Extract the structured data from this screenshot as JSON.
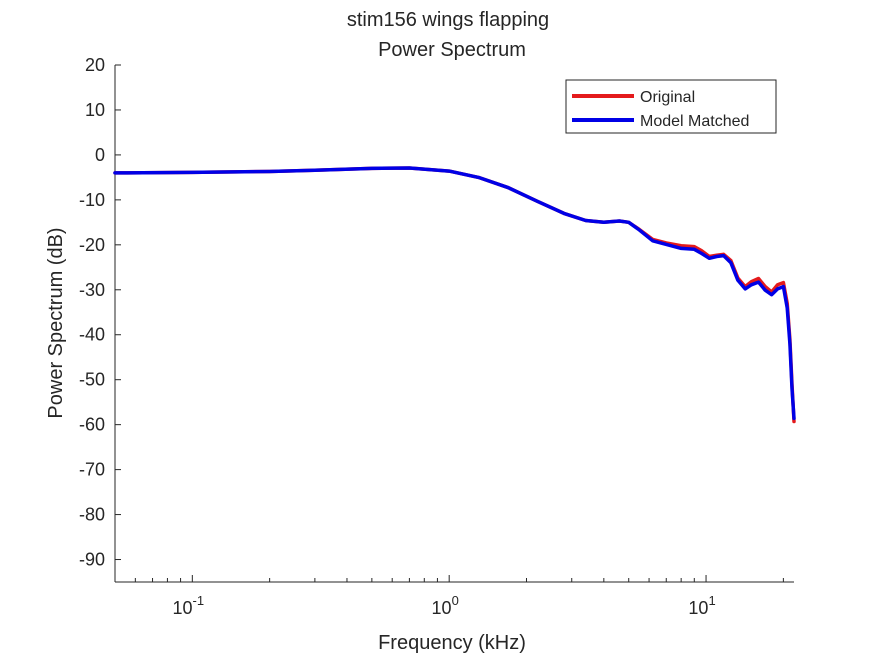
{
  "chart_data": {
    "type": "line",
    "title": [
      "stim156 wings flapping",
      "Power Spectrum"
    ],
    "xlabel": "Frequency (kHz)",
    "ylabel": "Power Spectrum (dB)",
    "xscale": "log",
    "xlim": [
      0.05,
      22
    ],
    "ylim": [
      -95,
      20
    ],
    "grid": false,
    "legend": {
      "placement": "top-right"
    },
    "x_ticks": [
      {
        "value": 0.1,
        "base": "10",
        "exp": "-1"
      },
      {
        "value": 1,
        "base": "10",
        "exp": "0"
      },
      {
        "value": 10,
        "base": "10",
        "exp": "1"
      }
    ],
    "y_ticks": [
      20,
      10,
      0,
      -10,
      -20,
      -30,
      -40,
      -50,
      -60,
      -70,
      -80,
      -90
    ],
    "series": [
      {
        "name": "Original",
        "color": "#e41a1c",
        "x": [
          0.05,
          0.1,
          0.2,
          0.3,
          0.5,
          0.7,
          1.0,
          1.3,
          1.7,
          2.2,
          2.8,
          3.4,
          4.0,
          4.6,
          5.0,
          5.5,
          6.2,
          7.0,
          8.0,
          9.0,
          9.6,
          10.3,
          11.0,
          11.7,
          12.5,
          13.3,
          14.2,
          15.0,
          16.0,
          17.0,
          18.0,
          19.0,
          20.0,
          20.7,
          21.2,
          21.6,
          22.0
        ],
        "y": [
          -4,
          -3.9,
          -3.7,
          -3.4,
          -3,
          -2.9,
          -3.6,
          -5,
          -7.3,
          -10.3,
          -13,
          -14.6,
          -15,
          -14.7,
          -15,
          -16.6,
          -18.8,
          -19.6,
          -20.2,
          -20.4,
          -21.3,
          -22.6,
          -22.3,
          -22.1,
          -23.5,
          -27.4,
          -29.3,
          -28.2,
          -27.5,
          -29.3,
          -30.5,
          -28.9,
          -28.4,
          -33,
          -41,
          -51,
          -59.3
        ]
      },
      {
        "name": "Model Matched",
        "color": "#0000e6",
        "x": [
          0.05,
          0.1,
          0.2,
          0.3,
          0.5,
          0.7,
          1.0,
          1.3,
          1.7,
          2.2,
          2.8,
          3.4,
          4.0,
          4.6,
          5.0,
          5.5,
          6.2,
          7.0,
          8.0,
          9.0,
          9.6,
          10.3,
          11.0,
          11.7,
          12.5,
          13.3,
          14.2,
          15.0,
          16.0,
          17.0,
          18.0,
          19.0,
          20.0,
          20.7,
          21.2,
          21.6,
          22.0
        ],
        "y": [
          -4,
          -3.9,
          -3.7,
          -3.4,
          -3,
          -2.9,
          -3.6,
          -5,
          -7.3,
          -10.3,
          -13,
          -14.6,
          -15,
          -14.7,
          -15,
          -16.7,
          -19.1,
          -19.9,
          -20.8,
          -21,
          -21.9,
          -23,
          -22.6,
          -22.4,
          -24,
          -27.9,
          -29.8,
          -28.9,
          -28.3,
          -30.1,
          -31.1,
          -29.8,
          -29.3,
          -34,
          -42,
          -52,
          -58.6
        ]
      }
    ]
  }
}
